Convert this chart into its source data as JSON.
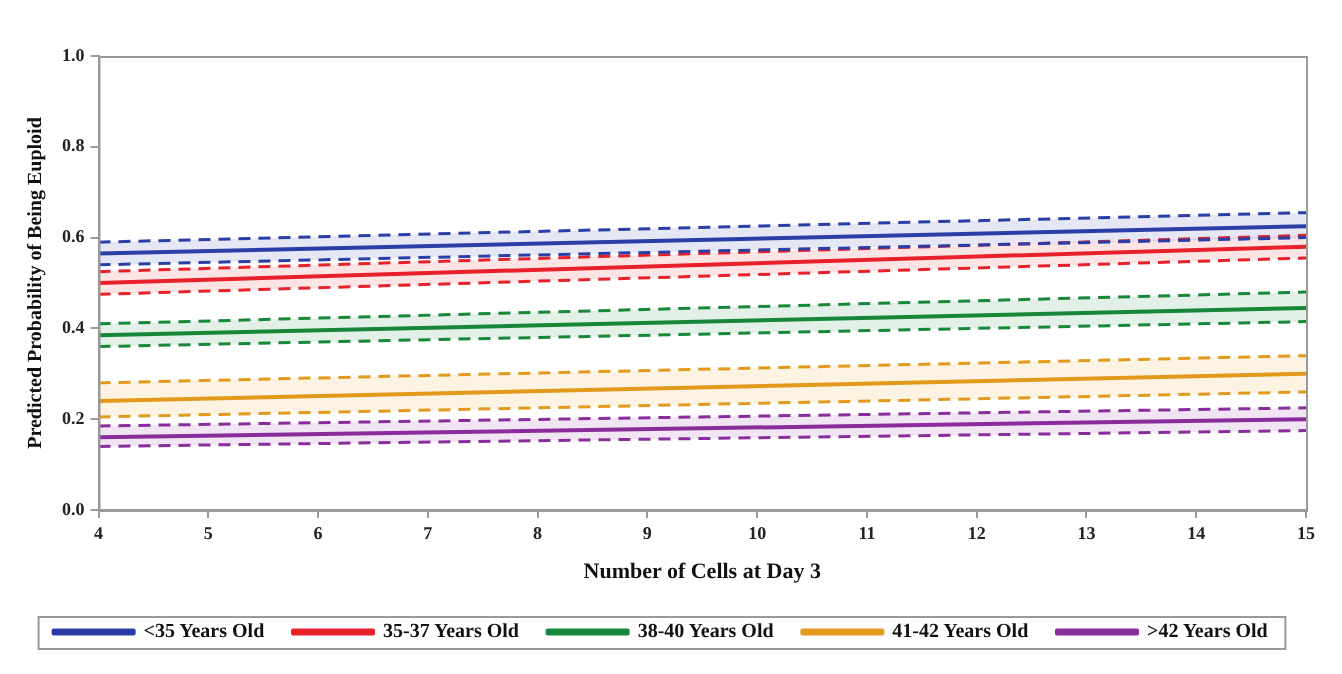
{
  "chart_data": {
    "type": "line",
    "xlabel": "Number of Cells at Day 3",
    "ylabel": "Predicted Probability of Being Euploid",
    "x": [
      4,
      15
    ],
    "series": [
      {
        "name": "<35 Years Old",
        "color": "#2b3ea8",
        "values": [
          0.565,
          0.625
        ],
        "lower": [
          0.54,
          0.6
        ],
        "upper": [
          0.59,
          0.655
        ]
      },
      {
        "color": "#2b3ea8",
        "values": [
          0.54,
          0.6
        ],
        "line_style": "dashed"
      },
      {
        "color": "#2b3ea8",
        "values": [
          0.59,
          0.655
        ],
        "line_style": "dashed"
      },
      {
        "color": "#e8202a",
        "values": [
          0.475,
          0.555
        ],
        "line_style": "dashed"
      },
      {
        "color": "#e8202a",
        "values": [
          0.525,
          0.605
        ],
        "line_style": "dashed"
      },
      {
        "color": "#17873a",
        "values": [
          0.36,
          0.415
        ],
        "line_style": "dashed"
      },
      {
        "color": "#17873a",
        "values": [
          0.41,
          0.48
        ],
        "line_style": "dashed"
      },
      {
        "color": "#e39a1c",
        "values": [
          0.205,
          0.26
        ],
        "line_style": "dashed"
      },
      {
        "color": "#e39a1c",
        "values": [
          0.28,
          0.34
        ],
        "line_style": "dashed"
      },
      {
        "color": "#8a2d9c",
        "values": [
          0.14,
          0.175
        ],
        "line_style": "dashed"
      },
      {
        "color": "#8a2d9c",
        "values": [
          0.185,
          0.225
        ],
        "line_style": "dashed"
      },
      {
        "name": "35-37 Years Old",
        "color": "#e8202a",
        "values": [
          0.5,
          0.58
        ],
        "lower": [
          0.475,
          0.555
        ],
        "upper": [
          0.525,
          0.605
        ]
      },
      {
        "name": "38-40 Years Old",
        "color": "#17873a",
        "values": [
          0.385,
          0.445
        ],
        "lower": [
          0.36,
          0.415
        ],
        "upper": [
          0.41,
          0.48
        ]
      },
      {
        "name": "41-42 Years Old",
        "color": "#e39a1c",
        "values": [
          0.24,
          0.3
        ],
        "lower": [
          0.205,
          0.26
        ],
        "upper": [
          0.28,
          0.34
        ]
      },
      {
        "name": ">42 Years Old",
        "color": "#8a2d9c",
        "values": [
          0.16,
          0.2
        ],
        "lower": [
          0.14,
          0.175
        ],
        "upper": [
          0.185,
          0.225
        ]
      }
    ],
    "xlim": [
      4,
      15
    ],
    "xticks": [
      4,
      5,
      6,
      7,
      8,
      9,
      10,
      11,
      12,
      13,
      14,
      15
    ],
    "ylim": [
      0,
      1
    ],
    "yticks": [
      {
        "value": 0,
        "label": "0.0"
      },
      {
        "value": 0.2,
        "label": "0.2"
      },
      {
        "value": 0.4,
        "label": "0.4"
      },
      {
        "value": 0.6,
        "label": "0.6"
      },
      {
        "value": 0.8,
        "label": "0.8"
      },
      {
        "value": 1,
        "label": "1.0"
      }
    ],
    "grid": false,
    "legend": "bottom",
    "line_style": "solid",
    "marker": "none"
  }
}
